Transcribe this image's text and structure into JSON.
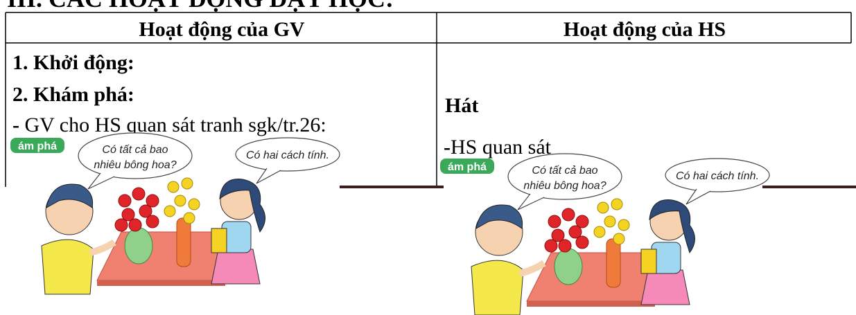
{
  "heading": "III. CÁC HOẠT ĐỘNG DẠY HỌC:",
  "table": {
    "headers": [
      "Hoạt động của GV",
      "Hoạt động của HS"
    ],
    "left": [
      "1. Khởi động:",
      "2. Khám phá:",
      {
        "dash": "-",
        "text": " GV cho HS quan sát tranh sgk/tr.26:"
      }
    ],
    "right": [
      "Hát",
      {
        "dash": "-",
        "text": "HS quan sát"
      }
    ]
  },
  "illustration": {
    "tag": "ám phá",
    "bubble1": [
      "Có tất cả bao",
      "nhiêu bông hoa?"
    ],
    "bubble2": "Có hai cách tính."
  }
}
